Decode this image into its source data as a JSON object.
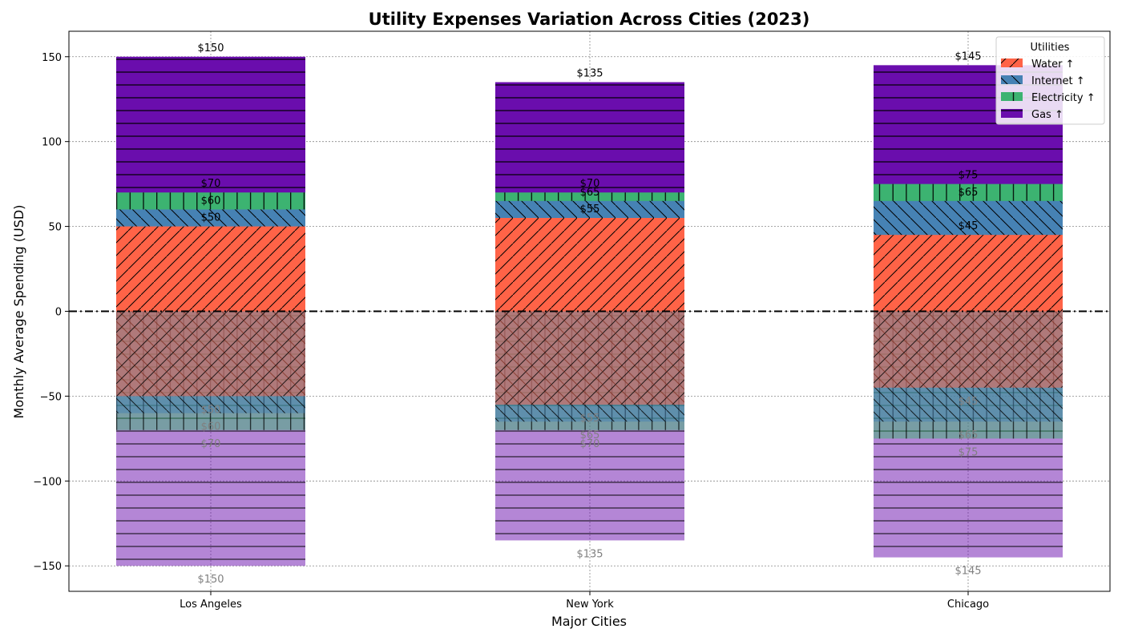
{
  "chart_data": {
    "type": "bar",
    "title": "Utility Expenses Variation Across Cities (2023)",
    "xlabel": "Major Cities",
    "ylabel": "Monthly Average Spending (USD)",
    "categories": [
      "Los Angeles",
      "New York",
      "Chicago"
    ],
    "ylim": [
      -165,
      165
    ],
    "yticks": [
      -150,
      -100,
      -50,
      0,
      50,
      100,
      150
    ],
    "ytick_labels": [
      "−150",
      "−100",
      "−50",
      "0",
      "50",
      "100",
      "150"
    ],
    "grid": true,
    "legend_title": "Utilities",
    "legend_position": "top-right",
    "series": [
      {
        "name": "Water ↑",
        "color": "#FF6347",
        "hatch": "diag-fwd",
        "values": [
          50,
          55,
          45
        ]
      },
      {
        "name": "Internet ↑",
        "color": "#4682B4",
        "hatch": "diag-back",
        "values": [
          60,
          65,
          65
        ]
      },
      {
        "name": "Electricity ↑",
        "color": "#3CB371",
        "hatch": "vertical",
        "values": [
          70,
          70,
          75
        ]
      },
      {
        "name": "Gas ↑",
        "color": "#6A0DAD",
        "hatch": "horizontal",
        "values": [
          150,
          135,
          145
        ]
      }
    ],
    "mirror_labels": [
      "$50",
      "$55",
      "$45",
      "$60",
      "$65",
      "$65",
      "$70",
      "$70",
      "$75",
      "$150",
      "$135",
      "$145"
    ]
  }
}
